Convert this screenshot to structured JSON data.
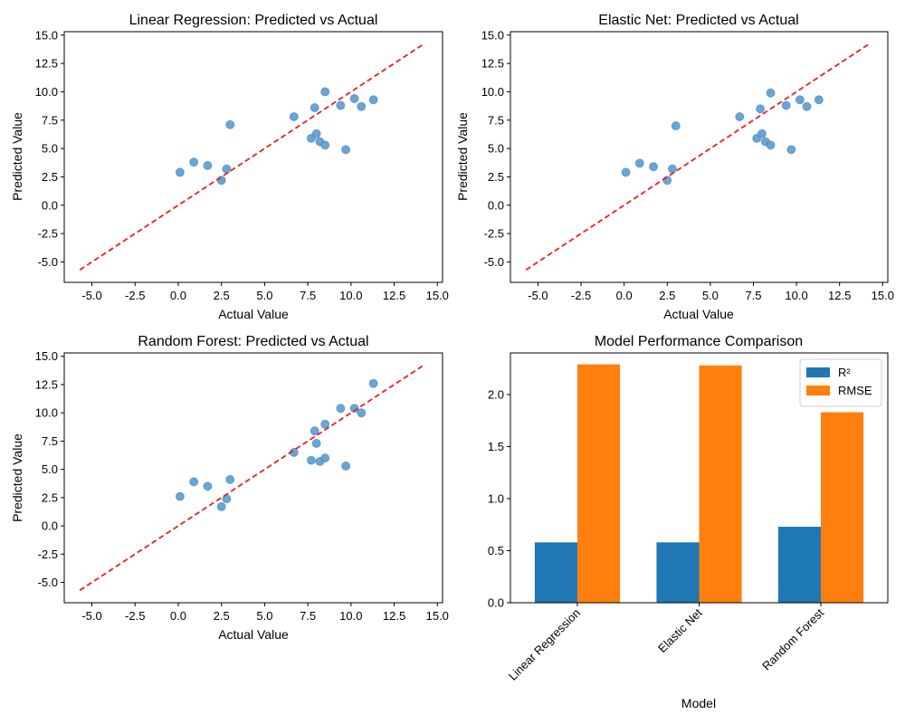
{
  "chart_data": [
    {
      "type": "scatter",
      "title": "Linear Regression: Predicted vs Actual",
      "xlabel": "Actual Value",
      "ylabel": "Predicted Value",
      "xlim": [
        -6.6,
        15.3
      ],
      "ylim": [
        -6.8,
        15.3
      ],
      "xticks": [
        "-5.0",
        "-2.5",
        "0.0",
        "2.5",
        "5.0",
        "7.5",
        "10.0",
        "12.5",
        "15.0"
      ],
      "yticks": [
        "-5.0",
        "-2.5",
        "0.0",
        "2.5",
        "5.0",
        "7.5",
        "10.0",
        "12.5",
        "15.0"
      ],
      "reference_line": {
        "from": [
          -5.7,
          -5.7
        ],
        "to": [
          14.2,
          14.2
        ],
        "color": "#e8201d",
        "style": "dashed"
      },
      "point_color": "#5a9bd0",
      "x": [
        0.1,
        0.9,
        1.7,
        2.5,
        2.8,
        3.0,
        6.7,
        7.7,
        7.9,
        8.0,
        8.2,
        8.5,
        8.5,
        9.4,
        9.7,
        10.2,
        10.6,
        11.3
      ],
      "y": [
        2.9,
        3.8,
        3.5,
        2.2,
        3.2,
        7.1,
        7.8,
        5.9,
        8.6,
        6.3,
        5.6,
        10.0,
        5.3,
        8.8,
        4.9,
        9.4,
        8.7,
        9.3
      ]
    },
    {
      "type": "scatter",
      "title": "Elastic Net: Predicted vs Actual",
      "xlabel": "Actual Value",
      "ylabel": "Predicted Value",
      "xlim": [
        -6.6,
        15.3
      ],
      "ylim": [
        -6.8,
        15.3
      ],
      "xticks": [
        "-5.0",
        "-2.5",
        "0.0",
        "2.5",
        "5.0",
        "7.5",
        "10.0",
        "12.5",
        "15.0"
      ],
      "yticks": [
        "-5.0",
        "-2.5",
        "0.0",
        "2.5",
        "5.0",
        "7.5",
        "10.0",
        "12.5",
        "15.0"
      ],
      "reference_line": {
        "from": [
          -5.7,
          -5.7
        ],
        "to": [
          14.2,
          14.2
        ],
        "color": "#e8201d",
        "style": "dashed"
      },
      "point_color": "#5a9bd0",
      "x": [
        0.1,
        0.9,
        1.7,
        2.5,
        2.8,
        3.0,
        6.7,
        7.7,
        7.9,
        8.0,
        8.2,
        8.5,
        8.5,
        9.4,
        9.7,
        10.2,
        10.6,
        11.3
      ],
      "y": [
        2.9,
        3.7,
        3.4,
        2.2,
        3.2,
        7.0,
        7.8,
        5.9,
        8.5,
        6.3,
        5.6,
        9.9,
        5.3,
        8.8,
        4.9,
        9.3,
        8.7,
        9.3
      ]
    },
    {
      "type": "scatter",
      "title": "Random Forest: Predicted vs Actual",
      "xlabel": "Actual Value",
      "ylabel": "Predicted Value",
      "xlim": [
        -6.6,
        15.3
      ],
      "ylim": [
        -6.8,
        15.3
      ],
      "xticks": [
        "-5.0",
        "-2.5",
        "0.0",
        "2.5",
        "5.0",
        "7.5",
        "10.0",
        "12.5",
        "15.0"
      ],
      "yticks": [
        "-5.0",
        "-2.5",
        "0.0",
        "2.5",
        "5.0",
        "7.5",
        "10.0",
        "12.5",
        "15.0"
      ],
      "reference_line": {
        "from": [
          -5.7,
          -5.7
        ],
        "to": [
          14.2,
          14.2
        ],
        "color": "#e8201d",
        "style": "dashed"
      },
      "point_color": "#5a9bd0",
      "x": [
        0.1,
        0.9,
        1.7,
        2.5,
        2.8,
        3.0,
        6.7,
        7.7,
        7.9,
        8.0,
        8.2,
        8.5,
        8.5,
        9.4,
        9.7,
        10.2,
        10.6,
        11.3
      ],
      "y": [
        2.6,
        3.9,
        3.5,
        1.7,
        2.4,
        4.1,
        6.5,
        5.8,
        8.4,
        7.3,
        5.7,
        9.0,
        6.0,
        10.4,
        5.3,
        10.4,
        10.0,
        12.6
      ]
    },
    {
      "type": "bar",
      "title": "Model Performance Comparison",
      "xlabel": "Model",
      "ylabel": "",
      "ylim": [
        0,
        2.4
      ],
      "yticks": [
        "0.0",
        "0.5",
        "1.0",
        "1.5",
        "2.0"
      ],
      "categories": [
        "Linear Regression",
        "Elastic Net",
        "Random Forest"
      ],
      "legend_position": "top-right",
      "series": [
        {
          "name": "R²",
          "color": "#1f77b4",
          "values": [
            0.58,
            0.58,
            0.73
          ]
        },
        {
          "name": "RMSE",
          "color": "#ff7f0e",
          "values": [
            2.29,
            2.28,
            1.83
          ]
        }
      ]
    }
  ]
}
